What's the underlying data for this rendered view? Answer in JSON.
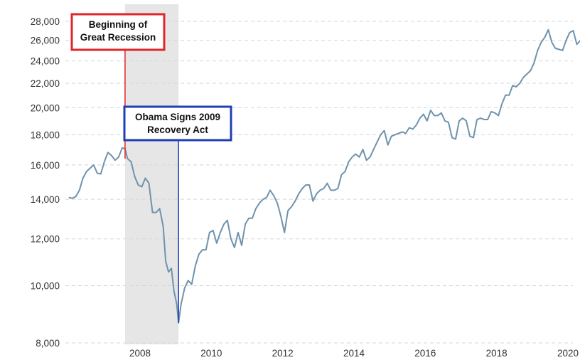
{
  "chart_data": {
    "type": "line",
    "title": "",
    "xlabel": "",
    "ylabel": "",
    "y_scale": "log",
    "ylim": [
      8000,
      28800
    ],
    "xlim": [
      2006.0,
      2020.4
    ],
    "grid": {
      "horizontal": true,
      "vertical": false,
      "style": "dashed"
    },
    "y_ticks": [
      8000,
      10000,
      12000,
      14000,
      16000,
      18000,
      20000,
      22000,
      24000,
      26000,
      28000
    ],
    "y_tick_labels": [
      "8,000",
      "10,000",
      "12,000",
      "14,000",
      "16,000",
      "18,000",
      "20,000",
      "22,000",
      "24,000",
      "26,000",
      "28,000"
    ],
    "x_ticks": [
      2008,
      2010,
      2012,
      2014,
      2016,
      2018,
      2020
    ],
    "x_tick_labels": [
      "2008",
      "2010",
      "2012",
      "2014",
      "2016",
      "2018",
      "2020"
    ],
    "shaded_region": {
      "from": 2007.58,
      "to": 2009.08,
      "color": "#e6e6e6"
    },
    "series": [
      {
        "color": "#6f93ad",
        "points": [
          [
            2006.0,
            14100
          ],
          [
            2006.1,
            14050
          ],
          [
            2006.2,
            14150
          ],
          [
            2006.3,
            14500
          ],
          [
            2006.4,
            15200
          ],
          [
            2006.5,
            15600
          ],
          [
            2006.6,
            15800
          ],
          [
            2006.7,
            16000
          ],
          [
            2006.8,
            15500
          ],
          [
            2006.9,
            15450
          ],
          [
            2007.0,
            16200
          ],
          [
            2007.1,
            16800
          ],
          [
            2007.2,
            16600
          ],
          [
            2007.3,
            16300
          ],
          [
            2007.4,
            16500
          ],
          [
            2007.5,
            17100
          ],
          [
            2007.58,
            17050
          ],
          [
            2007.65,
            16400
          ],
          [
            2007.75,
            16200
          ],
          [
            2007.85,
            15300
          ],
          [
            2007.95,
            14800
          ],
          [
            2008.05,
            14700
          ],
          [
            2008.15,
            15200
          ],
          [
            2008.25,
            14900
          ],
          [
            2008.35,
            13300
          ],
          [
            2008.45,
            13300
          ],
          [
            2008.55,
            13500
          ],
          [
            2008.65,
            12600
          ],
          [
            2008.72,
            11000
          ],
          [
            2008.8,
            10550
          ],
          [
            2008.88,
            10700
          ],
          [
            2008.95,
            9800
          ],
          [
            2009.03,
            9300
          ],
          [
            2009.08,
            8650
          ],
          [
            2009.15,
            9300
          ],
          [
            2009.25,
            9900
          ],
          [
            2009.35,
            10200
          ],
          [
            2009.45,
            10050
          ],
          [
            2009.55,
            10800
          ],
          [
            2009.65,
            11300
          ],
          [
            2009.75,
            11500
          ],
          [
            2009.85,
            11500
          ],
          [
            2009.95,
            12300
          ],
          [
            2010.05,
            12400
          ],
          [
            2010.15,
            11800
          ],
          [
            2010.25,
            12300
          ],
          [
            2010.35,
            12700
          ],
          [
            2010.45,
            12900
          ],
          [
            2010.55,
            12000
          ],
          [
            2010.65,
            11600
          ],
          [
            2010.75,
            12300
          ],
          [
            2010.85,
            11700
          ],
          [
            2010.95,
            12700
          ],
          [
            2011.05,
            13000
          ],
          [
            2011.15,
            13000
          ],
          [
            2011.25,
            13500
          ],
          [
            2011.35,
            13800
          ],
          [
            2011.45,
            14000
          ],
          [
            2011.55,
            14100
          ],
          [
            2011.65,
            14500
          ],
          [
            2011.75,
            14200
          ],
          [
            2011.85,
            13800
          ],
          [
            2011.95,
            13100
          ],
          [
            2012.05,
            12300
          ],
          [
            2012.15,
            13400
          ],
          [
            2012.25,
            13600
          ],
          [
            2012.35,
            13900
          ],
          [
            2012.45,
            14300
          ],
          [
            2012.55,
            14600
          ],
          [
            2012.65,
            14800
          ],
          [
            2012.75,
            14800
          ],
          [
            2012.85,
            13900
          ],
          [
            2012.95,
            14300
          ],
          [
            2013.05,
            14500
          ],
          [
            2013.15,
            14600
          ],
          [
            2013.25,
            14900
          ],
          [
            2013.35,
            14500
          ],
          [
            2013.45,
            14500
          ],
          [
            2013.55,
            14600
          ],
          [
            2013.65,
            15400
          ],
          [
            2013.75,
            15600
          ],
          [
            2013.85,
            16200
          ],
          [
            2013.95,
            16500
          ],
          [
            2014.05,
            16700
          ],
          [
            2014.15,
            16500
          ],
          [
            2014.25,
            17000
          ],
          [
            2014.35,
            16300
          ],
          [
            2014.45,
            16500
          ],
          [
            2014.55,
            17000
          ],
          [
            2014.65,
            17500
          ],
          [
            2014.75,
            18000
          ],
          [
            2014.85,
            18300
          ],
          [
            2014.95,
            17300
          ],
          [
            2015.05,
            17900
          ],
          [
            2015.15,
            18000
          ],
          [
            2015.25,
            18100
          ],
          [
            2015.35,
            18200
          ],
          [
            2015.45,
            18100
          ],
          [
            2015.55,
            18500
          ],
          [
            2015.65,
            18400
          ],
          [
            2015.75,
            18700
          ],
          [
            2015.85,
            19200
          ],
          [
            2015.95,
            19500
          ],
          [
            2016.05,
            19000
          ],
          [
            2016.15,
            19800
          ],
          [
            2016.25,
            19400
          ],
          [
            2016.35,
            19400
          ],
          [
            2016.45,
            19600
          ],
          [
            2016.55,
            19000
          ],
          [
            2016.65,
            18900
          ],
          [
            2016.75,
            17800
          ],
          [
            2016.85,
            17700
          ],
          [
            2016.95,
            19000
          ],
          [
            2017.05,
            19200
          ],
          [
            2017.15,
            19000
          ],
          [
            2017.25,
            17900
          ],
          [
            2017.35,
            17800
          ],
          [
            2017.45,
            19100
          ],
          [
            2017.55,
            19200
          ],
          [
            2017.65,
            19100
          ],
          [
            2017.75,
            19100
          ],
          [
            2017.85,
            19700
          ],
          [
            2017.95,
            19600
          ],
          [
            2018.05,
            19400
          ],
          [
            2018.15,
            20300
          ],
          [
            2018.25,
            21000
          ],
          [
            2018.35,
            21000
          ],
          [
            2018.45,
            21800
          ],
          [
            2018.55,
            21700
          ],
          [
            2018.65,
            22000
          ],
          [
            2018.75,
            22500
          ],
          [
            2018.85,
            22800
          ],
          [
            2018.95,
            23100
          ],
          [
            2019.05,
            23800
          ],
          [
            2019.15,
            25000
          ],
          [
            2019.25,
            25800
          ],
          [
            2019.35,
            26300
          ],
          [
            2019.45,
            27100
          ],
          [
            2019.55,
            25800
          ],
          [
            2019.65,
            25200
          ],
          [
            2019.75,
            25100
          ],
          [
            2019.85,
            25000
          ],
          [
            2019.95,
            26000
          ],
          [
            2020.05,
            26800
          ],
          [
            2020.15,
            27000
          ],
          [
            2020.25,
            25600
          ],
          [
            2020.35,
            26000
          ],
          [
            2020.45,
            24000
          ]
        ]
      }
    ],
    "annotations": [
      {
        "text_lines": [
          "Beginning of",
          "Great Recession"
        ],
        "x": 2007.58,
        "y": 16400,
        "color": "#e3242b"
      },
      {
        "text_lines": [
          "Obama Signs 2009",
          "Recovery Act"
        ],
        "x": 2009.08,
        "y": 8650,
        "color": "#1f3fb4"
      }
    ]
  }
}
